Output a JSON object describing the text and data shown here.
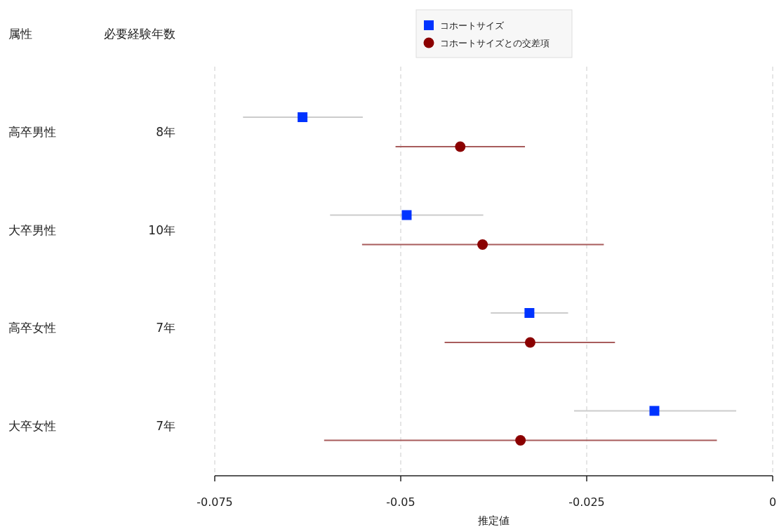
{
  "chart_data": {
    "type": "scatter",
    "orientation": "horizontal",
    "categories": [
      "8年",
      "10年",
      "7年",
      "7年"
    ],
    "y2_categories": [
      "高卒男性",
      "大卒男性",
      "高卒女性",
      "大卒女性"
    ],
    "annotations": [
      "属性",
      "必要経験年数"
    ],
    "xlabel": "推定値",
    "xlim": [
      -0.075,
      0
    ],
    "xticks": [
      -0.075,
      -0.05,
      -0.025,
      0
    ],
    "grid": "x",
    "legend": "top",
    "series": [
      {
        "name": "コホートサイズ",
        "color": "#0033ff",
        "marker": "square",
        "values": [
          -0.0632,
          -0.0492,
          -0.0327,
          -0.0159
        ],
        "errors": [
          [
            -0.0712,
            -0.0551
          ],
          [
            -0.0595,
            -0.0389
          ],
          [
            -0.0379,
            -0.0275
          ],
          [
            -0.0267,
            -0.0049
          ]
        ]
      },
      {
        "name": "コホートサイズとの交差項",
        "color": "#8b0000",
        "marker": "circle",
        "values": [
          -0.042,
          -0.039,
          -0.0326,
          -0.0339
        ],
        "errors": [
          [
            -0.0507,
            -0.0333
          ],
          [
            -0.0552,
            -0.0227
          ],
          [
            -0.0441,
            -0.0212
          ],
          [
            -0.0603,
            -0.0075
          ]
        ]
      }
    ]
  }
}
